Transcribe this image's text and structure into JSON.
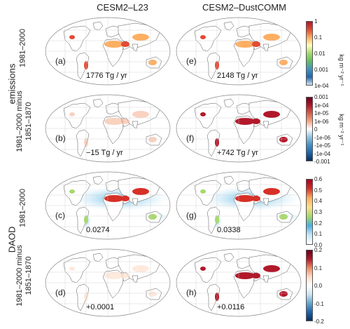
{
  "columns": [
    "CESM2–L23",
    "CESM2–DustCOMM"
  ],
  "groups": {
    "emissions": "emissions",
    "daod": "DAOD"
  },
  "row_labels": {
    "r1": "1981–2000",
    "r2_line1": "1981–2000 minus",
    "r2_line2": "1851–1870",
    "r3": "1981–2000",
    "r4_line1": "1981–2000 minus",
    "r4_line2": "1851–1870"
  },
  "panels": {
    "a": {
      "label": "(a)",
      "value": "1776 Tg / yr"
    },
    "b": {
      "label": "(b)",
      "value": "−15 Tg / yr"
    },
    "c": {
      "label": "(c)",
      "value": "0.0274"
    },
    "d": {
      "label": "(d)",
      "value": "+0.0001"
    },
    "e": {
      "label": "(e)",
      "value": "2148 Tg / yr"
    },
    "f": {
      "label": "(f)",
      "value": "+742 Tg / yr"
    },
    "g": {
      "label": "(g)",
      "value": "0.0338"
    },
    "h": {
      "label": "(h)",
      "value": "+0.0116"
    }
  },
  "colorbars": {
    "emis_abs": {
      "ticks": [
        "1",
        "0.1",
        "0.01",
        "0.001",
        "1e-04"
      ],
      "unit": "kg m⁻² yr⁻¹",
      "colors": [
        "#b2182b",
        "#e34a33",
        "#fdae61",
        "#ffffbf",
        "#a6d96a",
        "#66bd63",
        "#4393c3",
        "#2166ac",
        "#d1e5f0"
      ]
    },
    "emis_diff": {
      "ticks": [
        "0.001",
        "1e-04",
        "1e-05",
        "1e-06",
        "0",
        "-1e-06",
        "-1e-05",
        "-1e-04",
        "-0.001"
      ],
      "unit": "kg m⁻² yr⁻¹",
      "colors": [
        "#67001f",
        "#b2182b",
        "#d6604d",
        "#f4a582",
        "#ffffff",
        "#92c5de",
        "#4393c3",
        "#2166ac",
        "#053061"
      ]
    },
    "daod_abs": {
      "ticks": [
        "0.6",
        "0.5",
        "0.4",
        "0.3",
        "0.2",
        "0.1",
        "0.0"
      ],
      "colors": [
        "#a50026",
        "#d73027",
        "#fdae61",
        "#fee08b",
        "#a6d96a",
        "#4bb0e0",
        "#c6e7f6",
        "#ffffff"
      ]
    },
    "daod_diff": {
      "ticks": [
        "0.2",
        "0.1",
        "0.0",
        "-0.1",
        "-0.2"
      ],
      "colors": [
        "#67001f",
        "#b2182b",
        "#ef8a62",
        "#fddbc7",
        "#ffffff",
        "#d1e5f0",
        "#67a9cf",
        "#2166ac",
        "#053061"
      ]
    }
  }
}
